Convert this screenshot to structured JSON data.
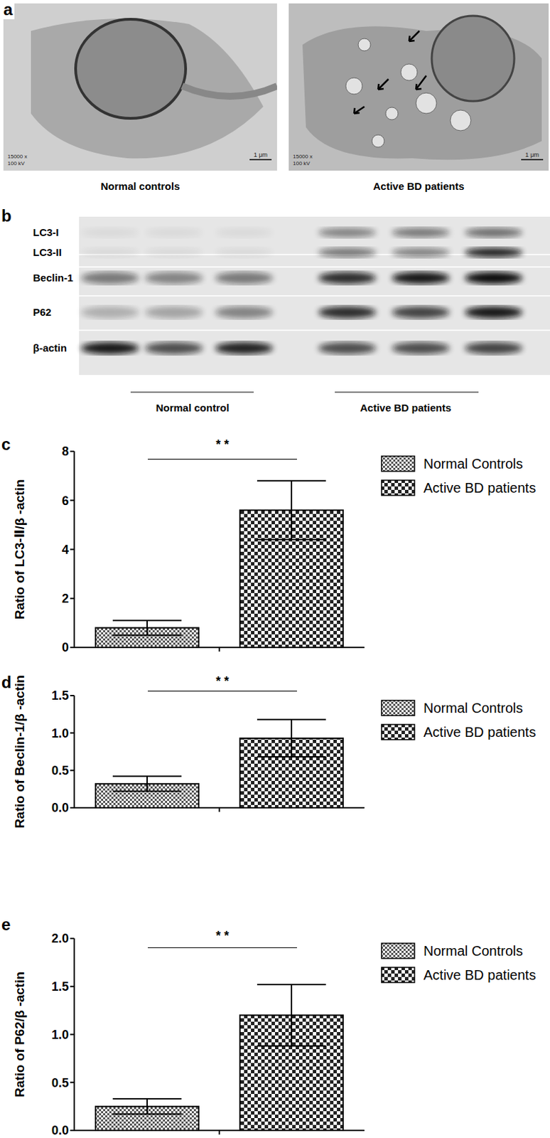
{
  "panels": {
    "a": {
      "label": "a",
      "images": [
        {
          "caption": "Normal controls",
          "magnification": "15000 x",
          "voltage": "100 kV",
          "scale_bar": "1 μm"
        },
        {
          "caption": "Active BD patients",
          "magnification": "15000 x",
          "voltage": "100 kV",
          "scale_bar": "1 μm"
        }
      ]
    },
    "b": {
      "label": "b",
      "rows": [
        "LC3-I",
        "LC3-II",
        "Beclin-1",
        "P62",
        "β-actin"
      ],
      "groups": [
        "Normal control",
        "Active BD patients"
      ]
    }
  },
  "chart_data": [
    {
      "type": "bar",
      "title": "c",
      "y_label": "Ratio of LC3-Ⅱ/β -actin",
      "categories": [
        null
      ],
      "series": [
        {
          "name": "Normal Controls",
          "color": "#555555",
          "values": [
            0.8
          ],
          "errors": [
            0.3
          ]
        },
        {
          "name": "Active BD patients",
          "color": "#222222",
          "values": [
            5.6
          ],
          "errors": [
            1.2
          ]
        }
      ],
      "ylim": [
        0,
        8
      ],
      "yticks": [
        0,
        2,
        4,
        6,
        8
      ],
      "grid": false,
      "legend": "top right",
      "annotations": [
        "* *"
      ]
    },
    {
      "type": "bar",
      "title": "d",
      "y_label": "Ratio of Beclin-1/β -actin",
      "categories": [
        null
      ],
      "series": [
        {
          "name": "Normal Controls",
          "color": "#555555",
          "values": [
            0.32
          ],
          "errors": [
            0.1
          ]
        },
        {
          "name": "Active BD patients",
          "color": "#222222",
          "values": [
            0.93
          ],
          "errors": [
            0.25
          ]
        }
      ],
      "ylim": [
        0,
        1.5
      ],
      "yticks": [
        {
          "value": 0,
          "label": "0.0"
        },
        {
          "value": 0.5,
          "label": "0.5"
        },
        {
          "value": 1,
          "label": "1.0"
        },
        {
          "value": 1.5,
          "label": "1.5"
        }
      ],
      "grid": false,
      "legend": "top right",
      "annotations": [
        "* *"
      ]
    },
    {
      "type": "bar",
      "title": "e",
      "y_label": "Ratio of P62/β -actin",
      "categories": [
        null
      ],
      "series": [
        {
          "name": "Normal Controls",
          "color": "#555555",
          "values": [
            0.25
          ],
          "errors": [
            0.08
          ]
        },
        {
          "name": "Active BD patients",
          "color": "#222222",
          "values": [
            1.2
          ],
          "errors": [
            0.32
          ]
        }
      ],
      "ylim": [
        0,
        2
      ],
      "yticks": [
        {
          "value": 0,
          "label": "0.0"
        },
        {
          "value": 0.5,
          "label": "0.5"
        },
        {
          "value": 1,
          "label": "1.0"
        },
        {
          "value": 1.5,
          "label": "1.5"
        },
        {
          "value": 2,
          "label": "2.0"
        }
      ],
      "grid": false,
      "legend": "top right",
      "annotations": [
        "* *"
      ]
    }
  ]
}
